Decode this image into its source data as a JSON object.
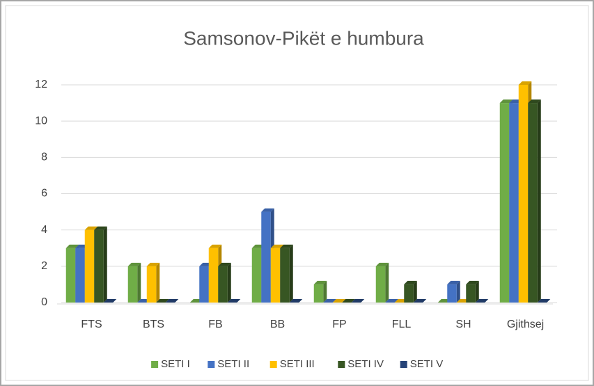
{
  "chart_data": {
    "type": "bar",
    "title": "Samsonov-Pikët e humbura",
    "categories": [
      "FTS",
      "BTS",
      "FB",
      "BB",
      "FP",
      "FLL",
      "SH",
      "Gjithsej"
    ],
    "series": [
      {
        "name": "SETI I",
        "color": "#70ad47",
        "values": [
          3,
          2,
          0,
          3,
          1,
          2,
          0,
          11
        ]
      },
      {
        "name": "SETI II",
        "color": "#4472c4",
        "values": [
          3,
          0,
          2,
          5,
          0,
          0,
          1,
          11
        ]
      },
      {
        "name": "SETI III",
        "color": "#ffc000",
        "values": [
          4,
          2,
          3,
          3,
          0,
          0,
          0,
          12
        ]
      },
      {
        "name": "SETI IV",
        "color": "#375623",
        "values": [
          4,
          0,
          2,
          3,
          0,
          1,
          1,
          11
        ]
      },
      {
        "name": "SETI V",
        "color": "#264478",
        "values": [
          0,
          0,
          0,
          0,
          0,
          0,
          0,
          0
        ]
      }
    ],
    "ylim": [
      0,
      12
    ],
    "yticks": [
      0,
      2,
      4,
      6,
      8,
      10,
      12
    ],
    "grid": true,
    "legend": "bottom"
  }
}
